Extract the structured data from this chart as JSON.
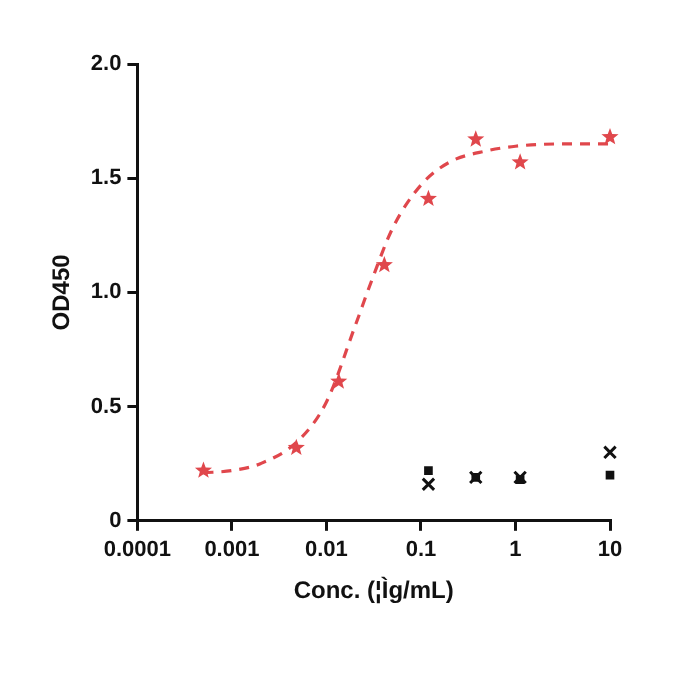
{
  "chart_data": {
    "type": "scatter",
    "xlabel": "Conc. (¦Ìg/mL)",
    "ylabel": "OD450",
    "log": "x",
    "xlim": [
      0.0001,
      10
    ],
    "xticks": [
      0.0001,
      0.001,
      0.01,
      0.1,
      1,
      10
    ],
    "ylim": [
      0,
      2
    ],
    "yticks": [
      0,
      {
        "value": 0.5,
        "label": "0.5"
      },
      {
        "value": 1,
        "label": "1.0"
      },
      {
        "value": 1.5,
        "label": "1.5"
      },
      {
        "value": 2,
        "label": "2.0"
      }
    ],
    "grid": false,
    "legend": false,
    "series": [
      {
        "type": "line",
        "color": "#e0474c",
        "line_style": "dashed",
        "marker": "none",
        "x": [
          0.0005,
          0.001,
          0.002,
          0.005,
          0.01,
          0.02,
          0.03,
          0.05,
          0.1,
          0.2,
          0.5,
          1,
          3,
          10
        ],
        "values": [
          0.21,
          0.22,
          0.25,
          0.35,
          0.52,
          0.85,
          1.05,
          1.28,
          1.47,
          1.57,
          1.62,
          1.64,
          1.65,
          1.65
        ]
      },
      {
        "color": "#e0474c",
        "marker": "star",
        "x": [
          0.0005,
          0.0048,
          0.0135,
          0.041,
          0.12,
          0.38,
          1.12,
          10
        ],
        "values": [
          0.22,
          0.32,
          0.61,
          1.12,
          1.41,
          1.67,
          1.57,
          1.68
        ]
      },
      {
        "color": "#111111",
        "marker": "cross",
        "x": [
          0.12,
          0.38,
          1.12,
          10
        ],
        "values": [
          0.16,
          0.19,
          0.19,
          0.3
        ]
      },
      {
        "color": "#111111",
        "marker": "square",
        "x": [
          0.12,
          0.38,
          1.12,
          10
        ],
        "values": [
          0.22,
          0.19,
          0.18,
          0.2
        ]
      }
    ]
  }
}
